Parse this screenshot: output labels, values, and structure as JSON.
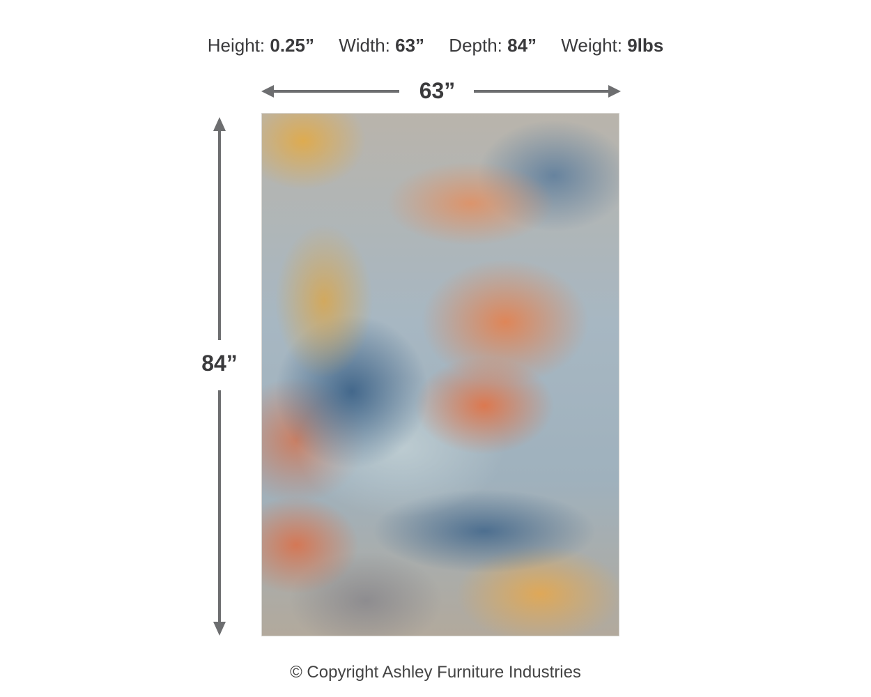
{
  "specs": [
    {
      "label": "Height:",
      "value": "0.25”"
    },
    {
      "label": "Width:",
      "value": "63”"
    },
    {
      "label": "Depth:",
      "value": "84”"
    },
    {
      "label": "Weight:",
      "value": "9lbs"
    }
  ],
  "dimensions": {
    "width_label": "63”",
    "height_label": "84”"
  },
  "product": {
    "image_alt": "Abstract area rug in blue, orange, gold and gray"
  },
  "colors": {
    "arrow": "#6d6e70",
    "text": "#3a3a3c"
  },
  "footer": {
    "copyright": "© Copyright Ashley Furniture Industries"
  }
}
